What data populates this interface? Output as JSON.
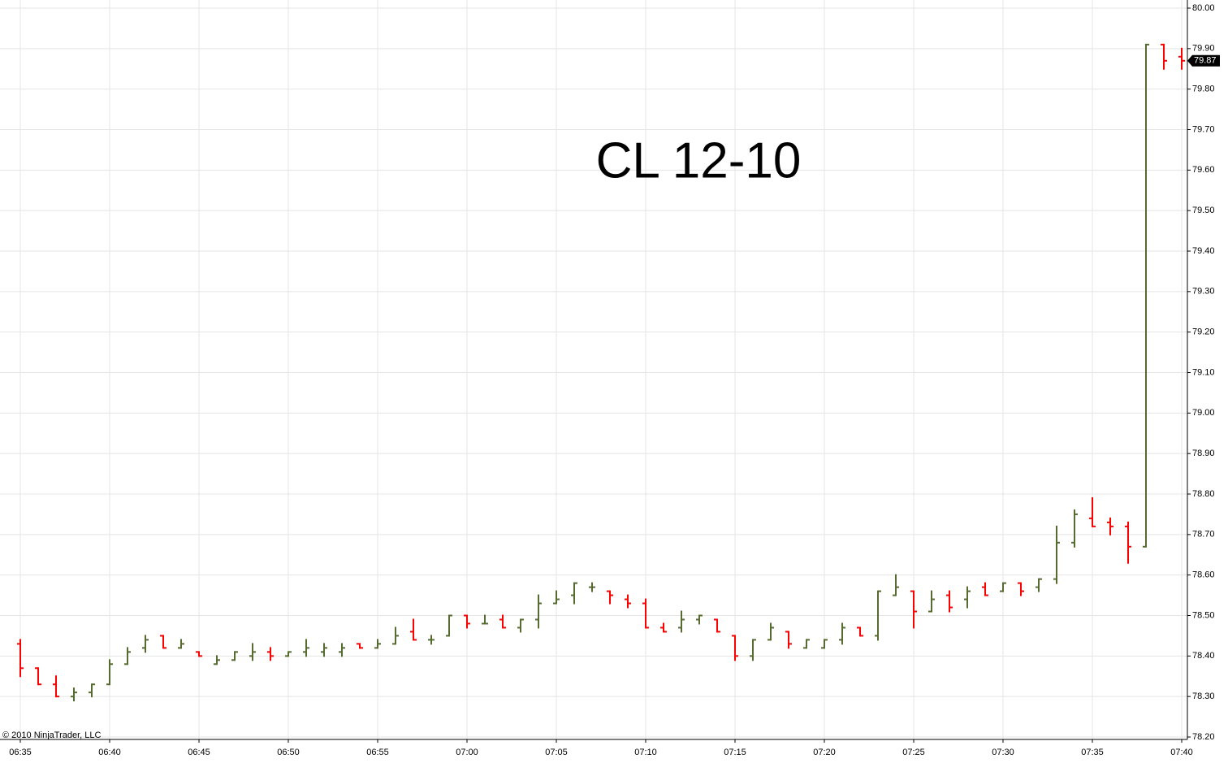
{
  "chart_data": {
    "type": "ohlc",
    "title": "CL 12-10",
    "copyright": "© 2010 NinjaTrader, LLC",
    "categories": [
      "06:35",
      null,
      null,
      null,
      null,
      "06:40",
      null,
      null,
      null,
      null,
      "06:45",
      null,
      null,
      null,
      null,
      "06:50",
      null,
      null,
      null,
      null,
      "06:55",
      null,
      null,
      null,
      null,
      "07:00",
      null,
      null,
      null,
      null,
      "07:05",
      null,
      null,
      null,
      null,
      "07:10",
      null,
      null,
      null,
      null,
      "07:15",
      null,
      null,
      null,
      null,
      "07:20",
      null,
      null,
      null,
      null,
      "07:25",
      null,
      null,
      null,
      null,
      "07:30",
      null,
      null,
      null,
      null,
      "07:35",
      null,
      null,
      null,
      null,
      "07:40"
    ],
    "open": [
      78.43,
      78.37,
      78.33,
      78.3,
      78.31,
      78.33,
      78.38,
      78.42,
      78.45,
      78.42,
      78.41,
      78.38,
      78.39,
      78.4,
      78.41,
      78.4,
      78.41,
      78.41,
      78.41,
      78.43,
      78.42,
      78.43,
      78.46,
      78.44,
      78.45,
      78.5,
      78.48,
      78.49,
      78.47,
      78.49,
      78.53,
      78.55,
      78.57,
      78.56,
      78.54,
      78.53,
      78.47,
      78.47,
      78.49,
      78.49,
      78.45,
      78.4,
      78.44,
      78.46,
      78.42,
      78.42,
      78.44,
      78.47,
      78.45,
      78.55,
      78.56,
      78.51,
      78.55,
      78.54,
      78.57,
      78.56,
      78.58,
      78.57,
      78.59,
      78.68,
      78.74,
      78.73,
      78.72,
      78.67,
      79.91,
      79.88
    ],
    "high": [
      78.44,
      78.37,
      78.35,
      78.32,
      78.33,
      78.39,
      78.42,
      78.45,
      78.45,
      78.44,
      78.41,
      78.4,
      78.41,
      78.43,
      78.42,
      78.41,
      78.44,
      78.43,
      78.43,
      78.43,
      78.44,
      78.47,
      78.49,
      78.45,
      78.5,
      78.5,
      78.5,
      78.5,
      78.49,
      78.55,
      78.56,
      78.58,
      78.58,
      78.56,
      78.55,
      78.54,
      78.48,
      78.51,
      78.5,
      78.49,
      78.45,
      78.44,
      78.48,
      78.46,
      78.44,
      78.44,
      78.48,
      78.47,
      78.56,
      78.6,
      78.56,
      78.56,
      78.56,
      78.57,
      78.58,
      78.58,
      78.58,
      78.59,
      78.72,
      78.76,
      78.79,
      78.74,
      78.73,
      79.91,
      79.91,
      79.9
    ],
    "low": [
      78.35,
      78.33,
      78.3,
      78.29,
      78.3,
      78.33,
      78.38,
      78.41,
      78.42,
      78.42,
      78.4,
      78.38,
      78.39,
      78.39,
      78.39,
      78.4,
      78.4,
      78.4,
      78.4,
      78.42,
      78.42,
      78.43,
      78.44,
      78.43,
      78.45,
      78.47,
      78.48,
      78.47,
      78.46,
      78.47,
      78.53,
      78.53,
      78.56,
      78.53,
      78.52,
      78.47,
      78.46,
      78.46,
      78.48,
      78.46,
      78.39,
      78.39,
      78.44,
      78.42,
      78.42,
      78.42,
      78.43,
      78.45,
      78.44,
      78.55,
      78.47,
      78.51,
      78.51,
      78.52,
      78.55,
      78.56,
      78.55,
      78.56,
      78.58,
      78.67,
      78.72,
      78.7,
      78.63,
      78.67,
      79.85,
      79.85
    ],
    "close": [
      78.37,
      78.33,
      78.3,
      78.31,
      78.33,
      78.38,
      78.41,
      78.44,
      78.42,
      78.43,
      78.4,
      78.39,
      78.41,
      78.41,
      78.4,
      78.41,
      78.42,
      78.42,
      78.42,
      78.42,
      78.43,
      78.45,
      78.44,
      78.44,
      78.5,
      78.48,
      78.48,
      78.47,
      78.49,
      78.53,
      78.54,
      78.58,
      78.57,
      78.55,
      78.53,
      78.47,
      78.46,
      78.49,
      78.5,
      78.46,
      78.4,
      78.44,
      78.47,
      78.43,
      78.44,
      78.44,
      78.47,
      78.45,
      78.56,
      78.57,
      78.51,
      78.54,
      78.52,
      78.56,
      78.55,
      78.58,
      78.56,
      78.59,
      78.68,
      78.75,
      78.72,
      78.72,
      78.67,
      79.91,
      79.87,
      79.87
    ],
    "up_color": "#556b2f",
    "down_color": "#ff0000",
    "last_price": 79.87,
    "ylim": [
      78.2,
      80.0
    ],
    "yticks": [
      {
        "value": 78.2,
        "label": "78.20"
      },
      {
        "value": 78.3,
        "label": "78.30"
      },
      {
        "value": 78.4,
        "label": "78.40"
      },
      {
        "value": 78.5,
        "label": "78.50"
      },
      {
        "value": 78.6,
        "label": "78.60"
      },
      {
        "value": 78.7,
        "label": "78.70"
      },
      {
        "value": 78.8,
        "label": "78.80"
      },
      {
        "value": 78.9,
        "label": "78.90"
      },
      {
        "value": 79.0,
        "label": "79.00"
      },
      {
        "value": 79.1,
        "label": "79.10"
      },
      {
        "value": 79.2,
        "label": "79.20"
      },
      {
        "value": 79.3,
        "label": "79.30"
      },
      {
        "value": 79.4,
        "label": "79.40"
      },
      {
        "value": 79.5,
        "label": "79.50"
      },
      {
        "value": 79.6,
        "label": "79.60"
      },
      {
        "value": 79.7,
        "label": "79.70"
      },
      {
        "value": 79.8,
        "label": "79.80"
      },
      {
        "value": 79.9,
        "label": "79.90"
      },
      {
        "value": 80.0,
        "label": "80.00"
      }
    ],
    "grid": true
  }
}
